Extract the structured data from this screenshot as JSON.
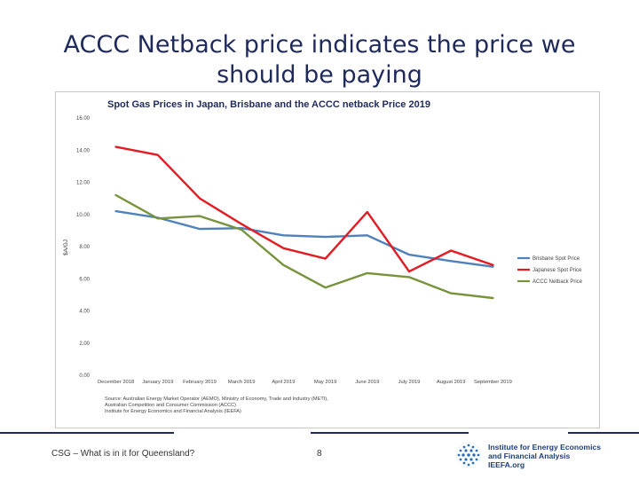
{
  "slide": {
    "title_line1": "ACCC Netback price indicates the price we",
    "title_line2": "should be paying",
    "footer_left": "CSG – What is in it for Queensland?",
    "page_number": "8"
  },
  "logo": {
    "line1": "Institute for Energy Economics",
    "line2": "and Financial Analysis",
    "line3": "IEEFA.org",
    "icon": "globe-dots-icon"
  },
  "colors": {
    "brisbane": "#4f81bd",
    "japanese": "#e31b23",
    "acccnetback": "#77933c",
    "title": "#1f2a5c"
  },
  "chart_data": {
    "type": "line",
    "title": "Spot Gas Prices in Japan, Brisbane and the ACCC netback Price 2019",
    "ylabel": "$A/GJ",
    "xlabel": "",
    "ylim": [
      0,
      16
    ],
    "yticks": [
      "0.00",
      "2.00",
      "4.00",
      "6.00",
      "8.00",
      "10.00",
      "12.00",
      "14.00",
      "16.00"
    ],
    "categories": [
      "December 2018",
      "January 2019",
      "February 2019",
      "March 2019",
      "April 2019",
      "May 2019",
      "June 2019",
      "July 2019",
      "August 2019",
      "September 2019"
    ],
    "grid": false,
    "legend_position": "right",
    "series": [
      {
        "name": "Brisbane Spot Price",
        "color_key": "brisbane",
        "values": [
          10.2,
          9.8,
          9.1,
          9.15,
          8.7,
          8.6,
          8.7,
          7.5,
          7.1,
          6.75
        ]
      },
      {
        "name": "Japanese Spot Price",
        "color_key": "japanese",
        "values": [
          14.2,
          13.7,
          11.0,
          9.4,
          7.9,
          7.25,
          10.15,
          6.45,
          7.75,
          6.85
        ]
      },
      {
        "name": "ACCC Netback Price",
        "color_key": "acccnetback",
        "values": [
          11.2,
          9.75,
          9.9,
          9.05,
          6.85,
          5.45,
          6.35,
          6.1,
          5.1,
          4.8
        ]
      }
    ],
    "source_lines": [
      "Source: Australian Energy Market Operator (AEMO), Ministry of Economy, Trade and Industry (METI),",
      "Australian Competition and Consumer Commission (ACCC)",
      "Institute for Energy Economics and Financial Analysis (IEEFA)"
    ]
  }
}
